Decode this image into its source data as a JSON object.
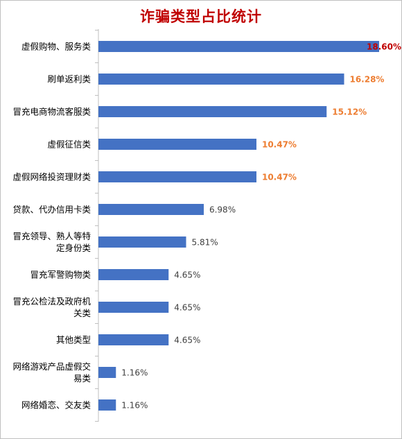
{
  "colors": {
    "bar": "#4472c4",
    "title": "#c00000",
    "axis": "#bfbfbf",
    "value_default": "#404040",
    "value_highlight": "#ed7d31",
    "value_top": "#c00000"
  },
  "chart_data": {
    "type": "bar",
    "orientation": "horizontal",
    "title": "诈骗类型占比统计",
    "grid": false,
    "legend": "none",
    "xlim": [
      0,
      19
    ],
    "categories": [
      [
        "虚假购物、服务类"
      ],
      [
        "刷单返利类"
      ],
      [
        "冒充电商物流客服类"
      ],
      [
        "虚假征信类"
      ],
      [
        "虚假网络投资理财类"
      ],
      [
        "贷款、代办信用卡类"
      ],
      [
        "冒充领导、熟人等特",
        "定身份类"
      ],
      [
        "冒充军警购物类"
      ],
      [
        "冒充公检法及政府机",
        "关类"
      ],
      [
        "其他类型"
      ],
      [
        "网络游戏产品虚假交",
        "易类"
      ],
      [
        "网络婚恋、交友类"
      ]
    ],
    "values": [
      18.6,
      16.28,
      15.12,
      10.47,
      10.47,
      6.98,
      5.81,
      4.65,
      4.65,
      4.65,
      1.16,
      1.16
    ],
    "value_labels": [
      "18.60%",
      "16.28%",
      "15.12%",
      "10.47%",
      "10.47%",
      "6.98%",
      "5.81%",
      "4.65%",
      "4.65%",
      "4.65%",
      "1.16%",
      "1.16%"
    ],
    "label_styles": [
      "top",
      "highlight",
      "highlight",
      "highlight",
      "highlight",
      "default",
      "default",
      "default",
      "default",
      "default",
      "default",
      "default"
    ]
  }
}
